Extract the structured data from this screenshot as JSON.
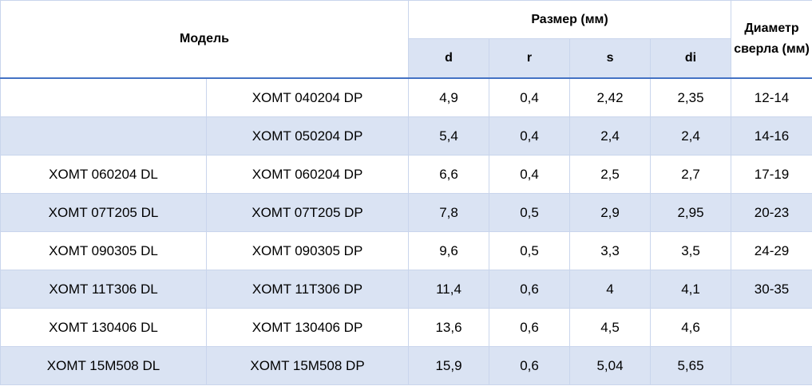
{
  "table": {
    "header": {
      "model": "Модель",
      "size": "Размер (мм)",
      "drill": "Диаметр сверла (мм)",
      "sub": [
        "d",
        "r",
        "s",
        "di"
      ]
    },
    "rows": [
      [
        null,
        "XOMT 040204 DP",
        "4,9",
        "0,4",
        "2,42",
        "2,35",
        "12-14"
      ],
      [
        null,
        "XOMT 050204 DP",
        "5,4",
        "0,4",
        "2,4",
        "2,4",
        "14-16"
      ],
      [
        "XOMT 060204 DL",
        "XOMT 060204 DP",
        "6,6",
        "0,4",
        "2,5",
        "2,7",
        "17-19"
      ],
      [
        "XOMT 07T205 DL",
        "XOMT 07T205 DP",
        "7,8",
        "0,5",
        "2,9",
        "2,95",
        "20-23"
      ],
      [
        "XOMT 090305 DL",
        "XOMT 090305 DP",
        "9,6",
        "0,5",
        "3,3",
        "3,5",
        "24-29"
      ],
      [
        "XOMT 11T306 DL",
        "XOMT 11T306 DP",
        "11,4",
        "0,6",
        "4",
        "4,1",
        "30-35"
      ],
      [
        "XOMT 130406 DL",
        "XOMT 130406 DP",
        "13,6",
        "0,6",
        "4,5",
        "4,6",
        null
      ],
      [
        "XOMT 15M508 DL",
        "XOMT 15M508 DP",
        "15,9",
        "0,6",
        "5,04",
        "5,65",
        null
      ]
    ]
  }
}
